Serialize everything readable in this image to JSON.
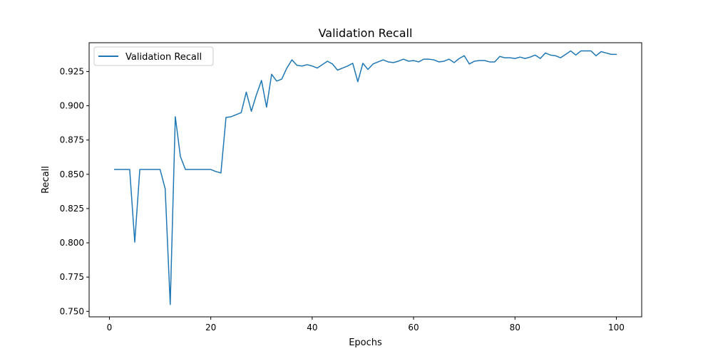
{
  "chart_data": {
    "type": "line",
    "title": "Validation Recall",
    "xlabel": "Epochs",
    "ylabel": "Recall",
    "xlim": [
      -4,
      105
    ],
    "ylim": [
      0.746,
      0.946
    ],
    "xticks": [
      0,
      20,
      40,
      60,
      80,
      100
    ],
    "yticks": [
      0.75,
      0.775,
      0.8,
      0.825,
      0.85,
      0.875,
      0.9,
      0.925
    ],
    "xtick_labels": [
      "0",
      "20",
      "40",
      "60",
      "80",
      "100"
    ],
    "ytick_labels": [
      "0.750",
      "0.775",
      "0.800",
      "0.825",
      "0.850",
      "0.875",
      "0.900",
      "0.925"
    ],
    "grid": false,
    "legend_position": "upper left",
    "series": [
      {
        "name": "Validation Recall",
        "color": "#1f77b4",
        "x": [
          1,
          2,
          3,
          4,
          5,
          6,
          7,
          8,
          9,
          10,
          11,
          12,
          13,
          14,
          15,
          16,
          17,
          18,
          19,
          20,
          21,
          22,
          23,
          24,
          25,
          26,
          27,
          28,
          29,
          30,
          31,
          32,
          33,
          34,
          35,
          36,
          37,
          38,
          39,
          40,
          41,
          42,
          43,
          44,
          45,
          46,
          47,
          48,
          49,
          50,
          51,
          52,
          53,
          54,
          55,
          56,
          57,
          58,
          59,
          60,
          61,
          62,
          63,
          64,
          65,
          66,
          67,
          68,
          69,
          70,
          71,
          72,
          73,
          74,
          75,
          76,
          77,
          78,
          79,
          80,
          81,
          82,
          83,
          84,
          85,
          86,
          87,
          88,
          89,
          90,
          91,
          92,
          93,
          94,
          95,
          96,
          97,
          98,
          99,
          100
        ],
        "y": [
          0.8535,
          0.8535,
          0.8535,
          0.8535,
          0.8005,
          0.8535,
          0.8535,
          0.8535,
          0.8535,
          0.8535,
          0.8395,
          0.755,
          0.892,
          0.863,
          0.8535,
          0.8535,
          0.8535,
          0.8535,
          0.8535,
          0.8535,
          0.852,
          0.851,
          0.8915,
          0.892,
          0.8935,
          0.895,
          0.91,
          0.896,
          0.908,
          0.9185,
          0.899,
          0.923,
          0.918,
          0.9195,
          0.9275,
          0.9335,
          0.9295,
          0.929,
          0.93,
          0.929,
          0.9275,
          0.93,
          0.9325,
          0.9305,
          0.926,
          0.9275,
          0.929,
          0.931,
          0.9175,
          0.931,
          0.9265,
          0.9305,
          0.932,
          0.9335,
          0.932,
          0.9315,
          0.9325,
          0.934,
          0.9325,
          0.933,
          0.932,
          0.934,
          0.934,
          0.9335,
          0.932,
          0.9325,
          0.934,
          0.9315,
          0.9345,
          0.9365,
          0.9305,
          0.9325,
          0.933,
          0.933,
          0.932,
          0.932,
          0.936,
          0.935,
          0.935,
          0.9345,
          0.9355,
          0.9345,
          0.9355,
          0.937,
          0.9345,
          0.9385,
          0.937,
          0.9365,
          0.935,
          0.9375,
          0.94,
          0.937,
          0.94,
          0.94,
          0.94,
          0.9365,
          0.9395,
          0.9385,
          0.9375,
          0.9375
        ]
      }
    ]
  }
}
